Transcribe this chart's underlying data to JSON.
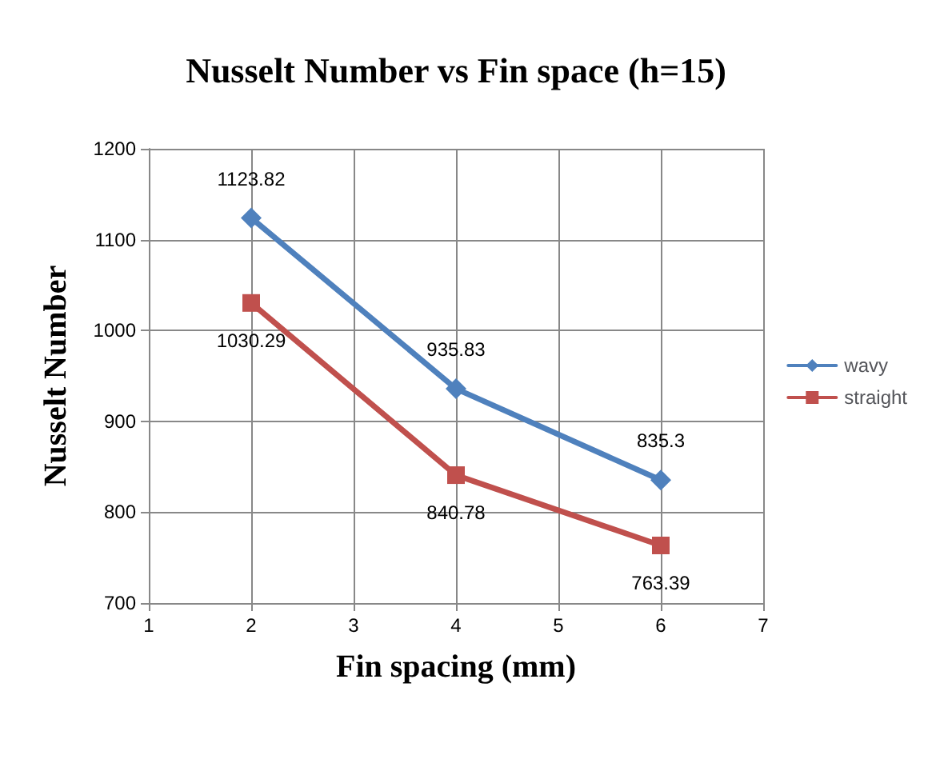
{
  "chart_data": {
    "type": "line",
    "title": "Nusselt Number vs Fin space (h=15)",
    "xlabel": "Fin spacing (mm)",
    "ylabel": "Nusselt Number",
    "x": [
      2,
      4,
      6
    ],
    "series": [
      {
        "name": "wavy",
        "color": "#4f81bd",
        "values": [
          1123.82,
          935.83,
          835.3
        ],
        "marker": "diamond"
      },
      {
        "name": "straight",
        "color": "#c0504d",
        "values": [
          1030.29,
          840.78,
          763.39
        ],
        "marker": "square"
      }
    ],
    "xlim": [
      1,
      7
    ],
    "xticks": [
      1,
      2,
      3,
      4,
      5,
      6,
      7
    ],
    "ylim": [
      700,
      1200
    ],
    "yticks": [
      700,
      800,
      900,
      1000,
      1100,
      1200
    ],
    "grid": true,
    "legend": "right",
    "data_labels": true
  }
}
